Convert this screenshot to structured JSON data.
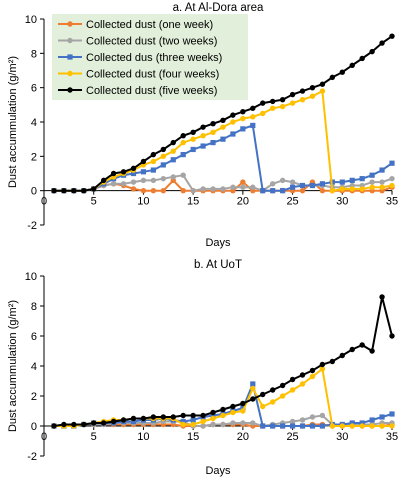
{
  "colors": {
    "one_week": "#ED7D31",
    "two_weeks": "#A5A5A5",
    "three_weeks": "#4472C4",
    "four_weeks": "#FFC000",
    "five_weeks": "#000000",
    "legend_bg": "#E2EFDA"
  },
  "chart_data": [
    {
      "type": "line",
      "title": "a. At Al-Dora area",
      "xlabel": "Days",
      "ylabel": "Dust accummulation (g/m²)",
      "xlim": [
        0,
        35
      ],
      "ylim": [
        -2,
        10
      ],
      "xticks": [
        0,
        5,
        10,
        15,
        20,
        25,
        30,
        35
      ],
      "yticks": [
        -2,
        0,
        2,
        4,
        6,
        8,
        10
      ],
      "legend": "top-left",
      "grid": false,
      "series": [
        {
          "name": "Collected dust (one week)",
          "color": "#ED7D31",
          "marker": "circle",
          "x": [
            1,
            2,
            3,
            4,
            5,
            6,
            7,
            8,
            9,
            10,
            11,
            12,
            13,
            14,
            15,
            16,
            17,
            18,
            19,
            20,
            21,
            22,
            23,
            24,
            25,
            26,
            27,
            28,
            29,
            30,
            31,
            32,
            33,
            34,
            35
          ],
          "y": [
            0,
            0,
            0,
            0,
            0.1,
            0.3,
            0.4,
            0.3,
            0.1,
            0,
            0,
            0,
            0.6,
            0,
            0,
            0,
            0,
            0,
            0,
            0.5,
            0,
            0,
            0,
            0,
            0,
            0,
            0.5,
            0,
            0,
            0,
            0,
            0,
            0,
            0,
            0.2
          ]
        },
        {
          "name": "Collected dust (two weeks)",
          "color": "#A5A5A5",
          "marker": "circle",
          "x": [
            1,
            2,
            3,
            4,
            5,
            6,
            7,
            8,
            9,
            10,
            11,
            12,
            13,
            14,
            15,
            16,
            17,
            18,
            19,
            20,
            21,
            22,
            23,
            24,
            25,
            26,
            27,
            28,
            29,
            30,
            31,
            32,
            33,
            34,
            35
          ],
          "y": [
            0,
            0,
            0,
            0,
            0.1,
            0.3,
            0.4,
            0.4,
            0.5,
            0.6,
            0.6,
            0.7,
            0.8,
            0.9,
            0,
            0.1,
            0.1,
            0.1,
            0.2,
            0.2,
            0.2,
            0,
            0.4,
            0.6,
            0.5,
            0.3,
            0.3,
            0.3,
            0.2,
            0.2,
            0.3,
            0.3,
            0.5,
            0.5,
            0.7
          ]
        },
        {
          "name": "Collected dus (three weeks)",
          "color": "#4472C4",
          "marker": "square",
          "x": [
            1,
            2,
            3,
            4,
            5,
            6,
            7,
            8,
            9,
            10,
            11,
            12,
            13,
            14,
            15,
            16,
            17,
            18,
            19,
            20,
            21,
            22,
            23,
            24,
            25,
            26,
            27,
            28,
            29,
            30,
            31,
            32,
            33,
            34,
            35
          ],
          "y": [
            0,
            0,
            0,
            0,
            0.1,
            0.4,
            0.7,
            0.9,
            1.0,
            1.1,
            1.2,
            1.5,
            1.8,
            2.1,
            2.4,
            2.6,
            2.8,
            3.0,
            3.3,
            3.6,
            3.8,
            0,
            0,
            0,
            0.2,
            0.3,
            0.3,
            0.4,
            0.5,
            0.5,
            0.6,
            0.7,
            0.9,
            1.2,
            1.6
          ]
        },
        {
          "name": "Collected dust (four weeks)",
          "color": "#FFC000",
          "marker": "circle",
          "x": [
            1,
            2,
            3,
            4,
            5,
            6,
            7,
            8,
            9,
            10,
            11,
            12,
            13,
            14,
            15,
            16,
            17,
            18,
            19,
            20,
            21,
            22,
            23,
            24,
            25,
            26,
            27,
            28,
            29,
            30,
            31,
            32,
            33,
            34,
            35
          ],
          "y": [
            0,
            0,
            0,
            0,
            0.1,
            0.5,
            0.8,
            1.0,
            1.2,
            1.5,
            1.7,
            2.0,
            2.3,
            2.8,
            3.0,
            3.2,
            3.4,
            3.7,
            4.0,
            4.2,
            4.3,
            4.5,
            4.8,
            4.9,
            5.1,
            5.3,
            5.5,
            5.8,
            0,
            0.1,
            0.1,
            0.1,
            0.2,
            0.2,
            0.3
          ]
        },
        {
          "name": "Collected dust (five weeks)",
          "color": "#000000",
          "marker": "circle",
          "x": [
            1,
            2,
            3,
            4,
            5,
            6,
            7,
            8,
            9,
            10,
            11,
            12,
            13,
            14,
            15,
            16,
            17,
            18,
            19,
            20,
            21,
            22,
            23,
            24,
            25,
            26,
            27,
            28,
            29,
            30,
            31,
            32,
            33,
            34,
            35
          ],
          "y": [
            0,
            0,
            0,
            0,
            0.1,
            0.6,
            1.0,
            1.1,
            1.3,
            1.7,
            2.1,
            2.4,
            2.8,
            3.2,
            3.4,
            3.7,
            3.9,
            4.1,
            4.4,
            4.6,
            4.8,
            5.1,
            5.2,
            5.3,
            5.6,
            5.8,
            6.0,
            6.2,
            6.6,
            6.9,
            7.3,
            7.7,
            8.1,
            8.6,
            9.0
          ]
        }
      ]
    },
    {
      "type": "line",
      "title": "b. At UoT",
      "xlabel": "Days",
      "ylabel": "Dust accummulation (g/m²)",
      "xlim": [
        0,
        35
      ],
      "ylim": [
        -2,
        10
      ],
      "xticks": [
        0,
        5,
        10,
        15,
        20,
        25,
        30,
        35
      ],
      "yticks": [
        -2,
        0,
        2,
        4,
        6,
        8,
        10
      ],
      "legend": "none",
      "grid": false,
      "series": [
        {
          "name": "Collected dust (one week)",
          "color": "#ED7D31",
          "marker": "circle",
          "x": [
            1,
            2,
            3,
            4,
            5,
            6,
            7,
            8,
            9,
            10,
            11,
            12,
            13,
            14,
            15,
            16,
            17,
            18,
            19,
            20,
            21,
            22,
            23,
            24,
            25,
            26,
            27,
            28,
            29,
            30,
            31,
            32,
            33,
            34,
            35
          ],
          "y": [
            0,
            0,
            0,
            0.1,
            0.1,
            0.1,
            0.1,
            0.1,
            0.1,
            0.1,
            0.1,
            0.1,
            0.1,
            0,
            0,
            0,
            0.1,
            0.1,
            0.1,
            0.1,
            0,
            0,
            0,
            0,
            0,
            0,
            0.1,
            0.1,
            0,
            0,
            0,
            0,
            0,
            0,
            0.1
          ]
        },
        {
          "name": "Collected dust (two weeks)",
          "color": "#A5A5A5",
          "marker": "circle",
          "x": [
            1,
            2,
            3,
            4,
            5,
            6,
            7,
            8,
            9,
            10,
            11,
            12,
            13,
            14,
            15,
            16,
            17,
            18,
            19,
            20,
            21,
            22,
            23,
            24,
            25,
            26,
            27,
            28,
            29,
            30,
            31,
            32,
            33,
            34,
            35
          ],
          "y": [
            0,
            0,
            0,
            0.1,
            0.1,
            0.1,
            0.2,
            0.2,
            0.2,
            0.2,
            0.2,
            0.3,
            0.3,
            0.3,
            0,
            0,
            0.1,
            0.1,
            0.2,
            0.2,
            0.2,
            0,
            0.1,
            0.2,
            0.3,
            0.4,
            0.6,
            0.7,
            0.1,
            0.1,
            0.1,
            0.1,
            0.1,
            0.2,
            0.2
          ]
        },
        {
          "name": "Collected dus (three weeks)",
          "color": "#4472C4",
          "marker": "square",
          "x": [
            1,
            2,
            3,
            4,
            5,
            6,
            7,
            8,
            9,
            10,
            11,
            12,
            13,
            14,
            15,
            16,
            17,
            18,
            19,
            20,
            21,
            22,
            23,
            24,
            25,
            26,
            27,
            28,
            29,
            30,
            31,
            32,
            33,
            34,
            35
          ],
          "y": [
            0,
            0,
            0,
            0.1,
            0.2,
            0.2,
            0.2,
            0.3,
            0.3,
            0.4,
            0.4,
            0.5,
            0.4,
            0.3,
            0.4,
            0.6,
            0.7,
            0.8,
            1.0,
            1.2,
            2.8,
            0,
            0,
            0,
            0,
            0,
            0,
            0,
            0.1,
            0.1,
            0.2,
            0.2,
            0.4,
            0.6,
            0.8
          ]
        },
        {
          "name": "Collected dust (four weeks)",
          "color": "#FFC000",
          "marker": "circle",
          "x": [
            1,
            2,
            3,
            4,
            5,
            6,
            7,
            8,
            9,
            10,
            11,
            12,
            13,
            14,
            15,
            16,
            17,
            18,
            19,
            20,
            21,
            22,
            23,
            24,
            25,
            26,
            27,
            28,
            29,
            30,
            31,
            32,
            33,
            34,
            35
          ],
          "y": [
            0,
            0,
            0,
            0.1,
            0.2,
            0.3,
            0.4,
            0.4,
            0.5,
            0.5,
            0.5,
            0.5,
            0.5,
            0.1,
            0.1,
            0.3,
            0.5,
            0.7,
            0.9,
            1.0,
            2.5,
            1.3,
            1.6,
            2.0,
            2.4,
            2.8,
            3.3,
            3.8,
            0,
            0,
            0,
            0,
            0,
            0,
            0
          ]
        },
        {
          "name": "Collected dust (five weeks)",
          "color": "#000000",
          "marker": "circle",
          "x": [
            1,
            2,
            3,
            4,
            5,
            6,
            7,
            8,
            9,
            10,
            11,
            12,
            13,
            14,
            15,
            16,
            17,
            18,
            19,
            20,
            21,
            22,
            23,
            24,
            25,
            26,
            27,
            28,
            29,
            30,
            31,
            32,
            33,
            34,
            35
          ],
          "y": [
            0,
            0.1,
            0.1,
            0.1,
            0.2,
            0.2,
            0.3,
            0.4,
            0.5,
            0.5,
            0.6,
            0.6,
            0.6,
            0.7,
            0.7,
            0.7,
            0.9,
            1.1,
            1.3,
            1.5,
            1.8,
            2.1,
            2.4,
            2.7,
            3.1,
            3.4,
            3.7,
            4.1,
            4.3,
            4.7,
            5.1,
            5.4,
            5.0,
            8.6,
            6.0
          ]
        }
      ]
    }
  ]
}
